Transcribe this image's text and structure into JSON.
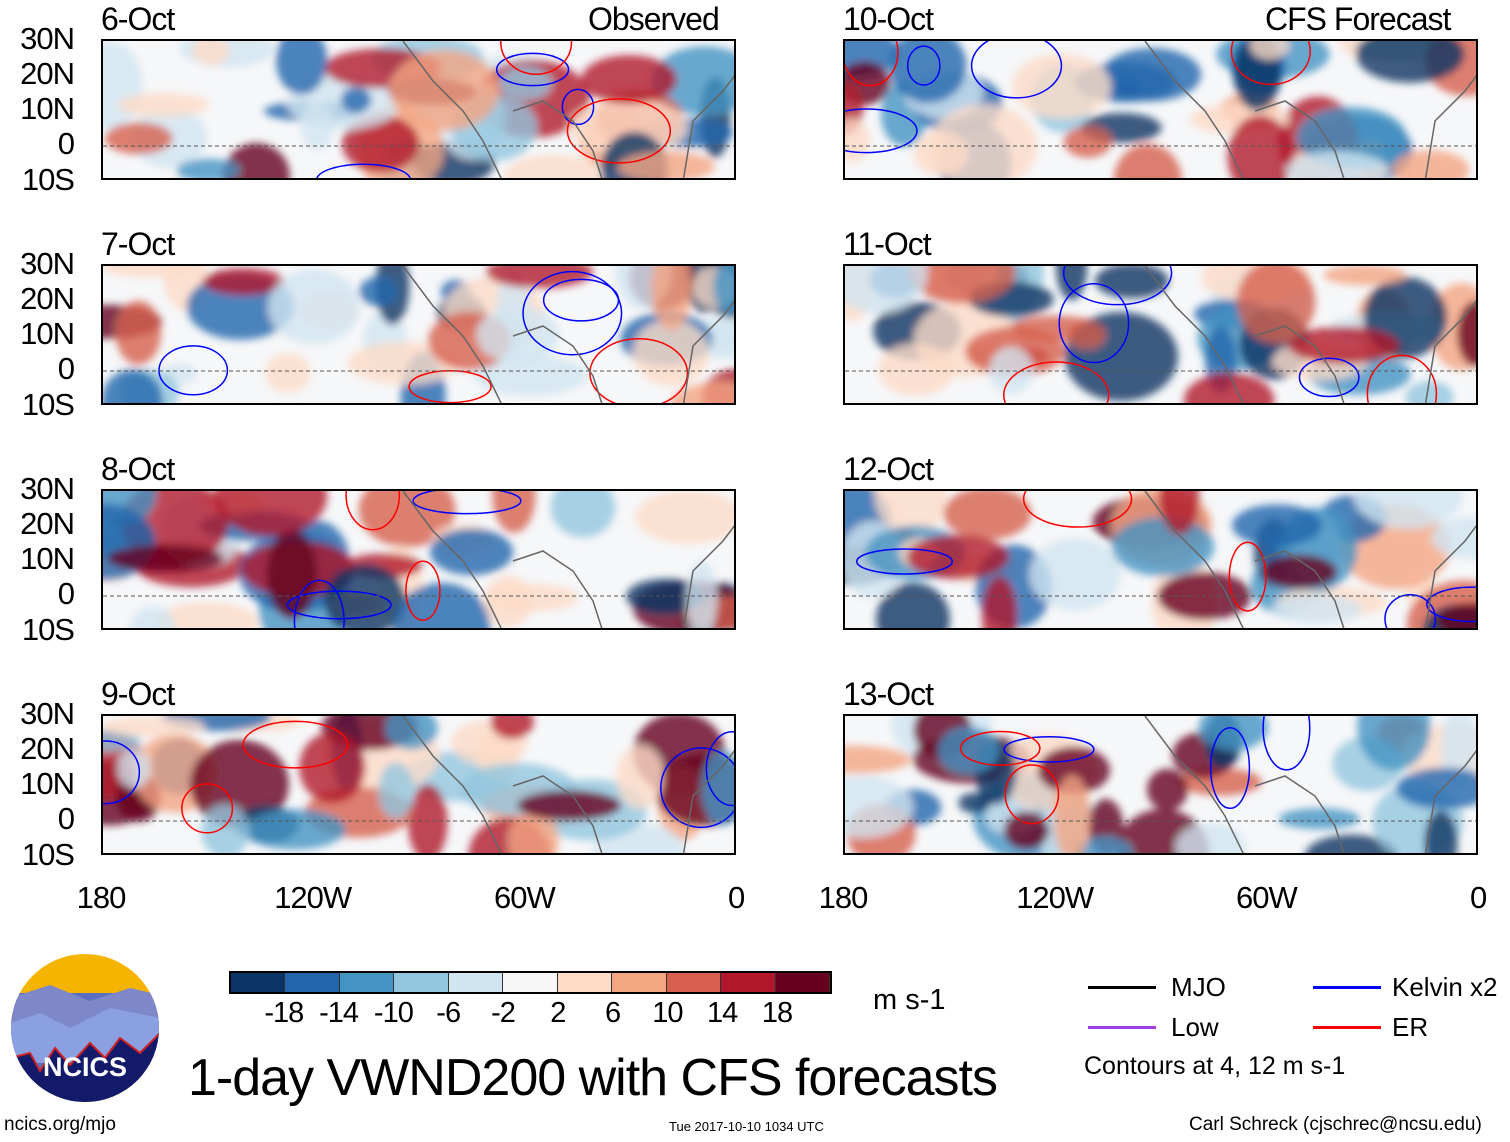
{
  "header": {
    "left_label": "Observed",
    "right_label": "CFS Forecast"
  },
  "panels_left": [
    {
      "date": "6-Oct"
    },
    {
      "date": "7-Oct"
    },
    {
      "date": "8-Oct"
    },
    {
      "date": "9-Oct"
    }
  ],
  "panels_right": [
    {
      "date": "10-Oct"
    },
    {
      "date": "11-Oct"
    },
    {
      "date": "12-Oct"
    },
    {
      "date": "13-Oct"
    }
  ],
  "lat_labels": [
    "30N",
    "20N",
    "10N",
    "0",
    "10S"
  ],
  "lon_labels": [
    "180",
    "120W",
    "60W",
    "0"
  ],
  "colorbar": {
    "colors": [
      "#0a3463",
      "#2166ac",
      "#4393c3",
      "#92c5de",
      "#d1e5f0",
      "#f7f7f7",
      "#fddbc7",
      "#f4a582",
      "#d6604d",
      "#b2182b",
      "#67001f"
    ],
    "ticks": [
      "-18",
      "-14",
      "-10",
      "-6",
      "-2",
      "2",
      "6",
      "10",
      "14",
      "18"
    ],
    "units": "m s-1"
  },
  "legend": {
    "items": [
      {
        "label": "MJO",
        "color": "#000000"
      },
      {
        "label": "Kelvin x2",
        "color": "#0000ff"
      },
      {
        "label": "Low",
        "color": "#a040e0"
      },
      {
        "label": "ER",
        "color": "#ff0000"
      }
    ],
    "note": "Contours at 4, 12 m s-1"
  },
  "logo": {
    "text": "NCICS"
  },
  "title": "1-day VWND200 with CFS forecasts",
  "footer": {
    "url": "ncics.org/mjo",
    "timestamp": "Tue 2017-10-10 1034 UTC",
    "credit": "Carl Schreck (cjschrec@ncsu.edu)"
  }
}
